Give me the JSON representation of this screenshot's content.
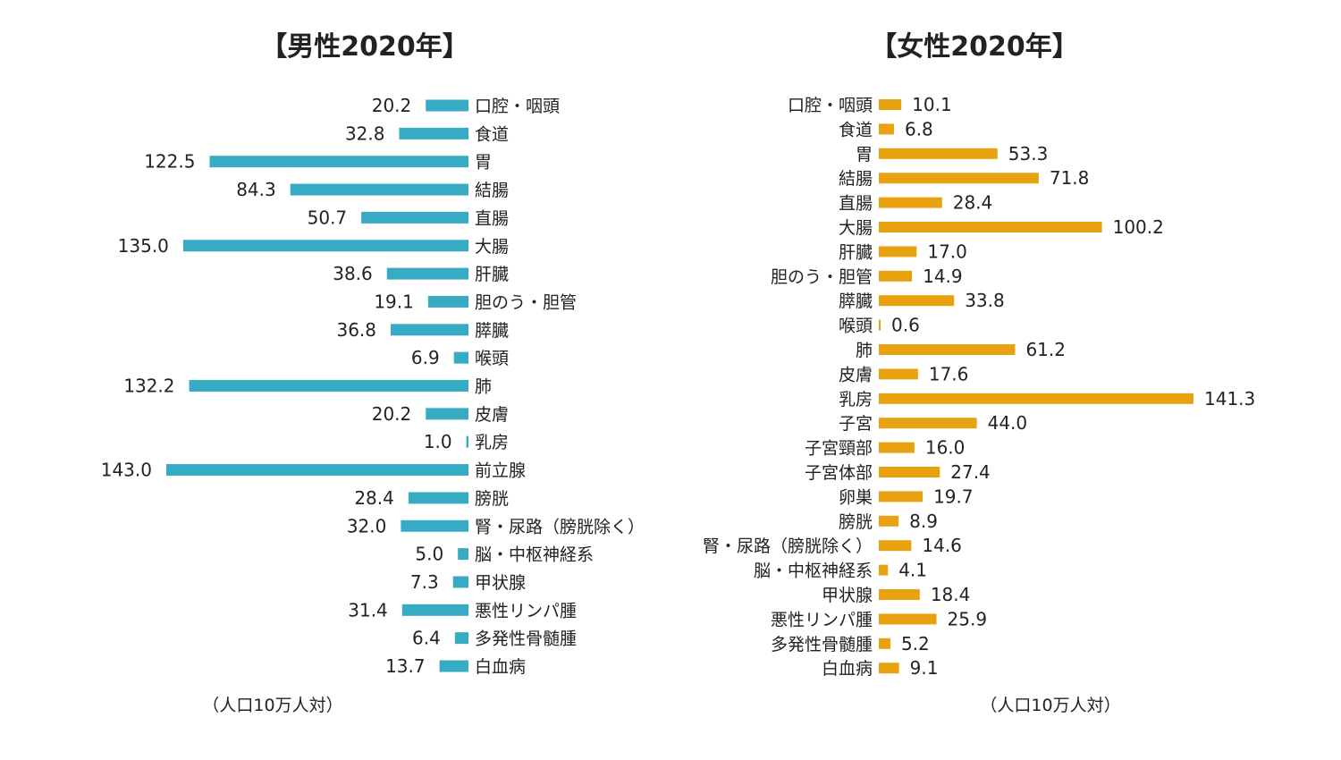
{
  "chart_data": [
    {
      "type": "bar",
      "orientation": "horizontal",
      "title": "【男性2020年】",
      "unit_note": "（人口10万人対）",
      "bar_direction": "leftward",
      "color": "#38abc4",
      "xlim": [
        0,
        143.0
      ],
      "categories": [
        "口腔・咽頭",
        "食道",
        "胃",
        "結腸",
        "直腸",
        "大腸",
        "肝臓",
        "胆のう・胆管",
        "膵臓",
        "喉頭",
        "肺",
        "皮膚",
        "乳房",
        "前立腺",
        "膀胱",
        "腎・尿路（膀胱除く）",
        "脳・中枢神経系",
        "甲状腺",
        "悪性リンパ腫",
        "多発性骨髄腫",
        "白血病"
      ],
      "values": [
        20.2,
        32.8,
        122.5,
        84.3,
        50.7,
        135.0,
        38.6,
        19.1,
        36.8,
        6.9,
        132.2,
        20.2,
        1.0,
        143.0,
        28.4,
        32.0,
        5.0,
        7.3,
        31.4,
        6.4,
        13.7
      ],
      "value_labels": [
        "20.2",
        "32.8",
        "122.5",
        "84.3",
        "50.7",
        "135.0",
        "38.6",
        "19.1",
        "36.8",
        "6.9",
        "132.2",
        "20.2",
        "1.0",
        "143.0",
        "28.4",
        "32.0",
        "5.0",
        "7.3",
        "31.4",
        "6.4",
        "13.7"
      ]
    },
    {
      "type": "bar",
      "orientation": "horizontal",
      "title": "【女性2020年】",
      "unit_note": "（人口10万人対）",
      "bar_direction": "rightward",
      "color": "#e8a20f",
      "xlim": [
        0,
        141.3
      ],
      "categories": [
        "口腔・咽頭",
        "食道",
        "胃",
        "結腸",
        "直腸",
        "大腸",
        "肝臓",
        "胆のう・胆管",
        "膵臓",
        "喉頭",
        "肺",
        "皮膚",
        "乳房",
        "子宮",
        "子宮頸部",
        "子宮体部",
        "卵巣",
        "膀胱",
        "腎・尿路（膀胱除く）",
        "脳・中枢神経系",
        "甲状腺",
        "悪性リンパ腫",
        "多発性骨髄腫",
        "白血病"
      ],
      "values": [
        10.1,
        6.8,
        53.3,
        71.8,
        28.4,
        100.2,
        17.0,
        14.9,
        33.8,
        0.6,
        61.2,
        17.6,
        141.3,
        44.0,
        16.0,
        27.4,
        19.7,
        8.9,
        14.6,
        4.1,
        18.4,
        25.9,
        5.2,
        9.1
      ],
      "value_labels": [
        "10.1",
        "6.8",
        "53.3",
        "71.8",
        "28.4",
        "100.2",
        "17.0",
        "14.9",
        "33.8",
        "0.6",
        "61.2",
        "17.6",
        "141.3",
        "44.0",
        "16.0",
        "27.4",
        "19.7",
        "8.9",
        "14.6",
        "4.1",
        "18.4",
        "25.9",
        "5.2",
        "9.1"
      ]
    }
  ]
}
